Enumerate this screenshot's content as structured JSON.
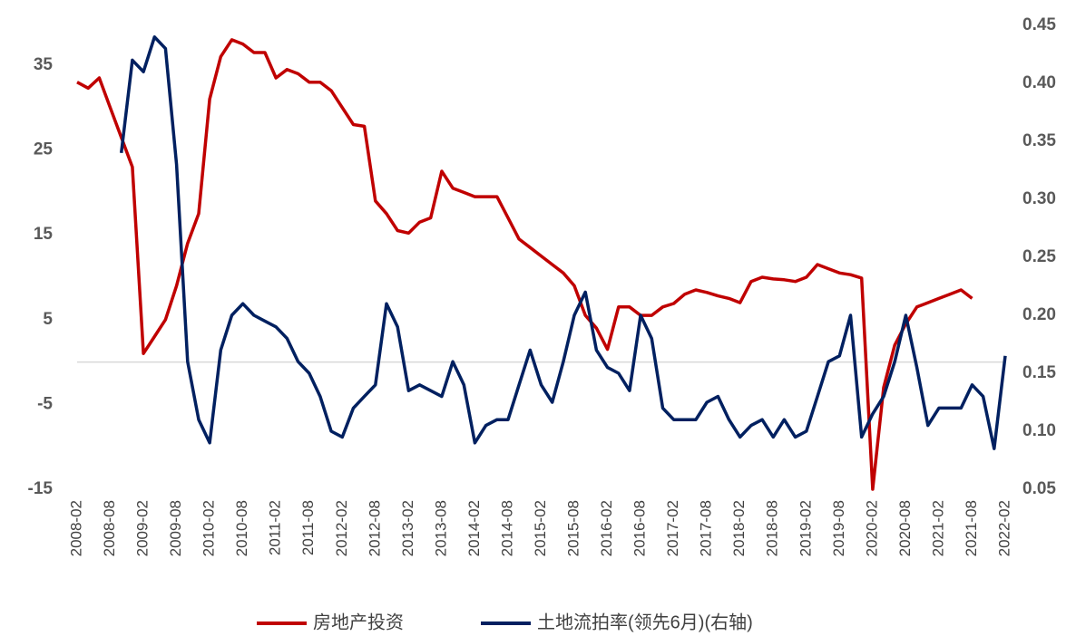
{
  "chart_data": {
    "type": "line",
    "x": [
      "2008-02",
      "2008-04",
      "2008-06",
      "2008-08",
      "2008-10",
      "2008-12",
      "2009-02",
      "2009-04",
      "2009-06",
      "2009-08",
      "2009-10",
      "2009-12",
      "2010-02",
      "2010-04",
      "2010-06",
      "2010-08",
      "2010-10",
      "2010-12",
      "2011-02",
      "2011-04",
      "2011-06",
      "2011-08",
      "2011-10",
      "2011-12",
      "2012-02",
      "2012-04",
      "2012-06",
      "2012-08",
      "2012-10",
      "2012-12",
      "2013-02",
      "2013-04",
      "2013-06",
      "2013-08",
      "2013-10",
      "2013-12",
      "2014-02",
      "2014-04",
      "2014-06",
      "2014-08",
      "2014-10",
      "2014-12",
      "2015-02",
      "2015-04",
      "2015-06",
      "2015-08",
      "2015-10",
      "2015-12",
      "2016-02",
      "2016-04",
      "2016-06",
      "2016-08",
      "2016-10",
      "2016-12",
      "2017-02",
      "2017-04",
      "2017-06",
      "2017-08",
      "2017-10",
      "2017-12",
      "2018-02",
      "2018-04",
      "2018-06",
      "2018-08",
      "2018-10",
      "2018-12",
      "2019-02",
      "2019-04",
      "2019-06",
      "2019-08",
      "2019-10",
      "2019-12",
      "2020-02",
      "2020-04",
      "2020-06",
      "2020-08",
      "2020-10",
      "2020-12",
      "2021-02",
      "2021-04",
      "2021-06",
      "2021-08",
      "2021-10",
      "2021-12",
      "2022-02"
    ],
    "series": [
      {
        "name": "房地产投资",
        "color": "#c00000",
        "values": [
          33,
          32.3,
          33.5,
          30,
          26.5,
          23,
          1,
          3,
          5,
          9,
          14,
          17.5,
          31,
          36,
          38,
          37.5,
          36.5,
          36.5,
          33.5,
          34.5,
          34,
          33,
          33,
          32,
          30,
          28,
          27.8,
          19,
          17.5,
          15.5,
          15.2,
          16.5,
          17,
          22.5,
          20.5,
          20,
          19.5,
          19.5,
          19.5,
          17,
          14.5,
          13.5,
          12.5,
          11.5,
          10.5,
          9,
          5.5,
          4,
          1.5,
          6.5,
          6.5,
          5.5,
          5.5,
          6.5,
          6.9,
          8,
          8.5,
          8.2,
          7.8,
          7.5,
          7,
          9.5,
          10,
          9.8,
          9.7,
          9.5,
          10,
          11.5,
          11,
          10.5,
          10.3,
          9.9,
          -15,
          -3,
          2,
          4.5,
          6.5,
          7,
          7.5,
          8,
          8.5,
          7.5,
          null,
          null,
          null
        ]
      },
      {
        "name": "土地流拍率(领先6月)(右轴)",
        "color": "#002060",
        "axis": "y2",
        "values": [
          null,
          null,
          null,
          null,
          0.34,
          0.42,
          0.41,
          0.44,
          0.43,
          0.33,
          0.16,
          0.11,
          0.09,
          0.17,
          0.2,
          0.21,
          0.2,
          0.195,
          0.19,
          0.18,
          0.16,
          0.15,
          0.13,
          0.1,
          0.095,
          0.12,
          0.13,
          0.14,
          0.21,
          0.19,
          0.135,
          0.14,
          0.135,
          0.13,
          0.16,
          0.14,
          0.09,
          0.105,
          0.11,
          0.11,
          0.14,
          0.17,
          0.14,
          0.125,
          0.16,
          0.2,
          0.22,
          0.17,
          0.155,
          0.15,
          0.135,
          0.2,
          0.18,
          0.12,
          0.11,
          0.11,
          0.11,
          0.125,
          0.13,
          0.11,
          0.095,
          0.105,
          0.11,
          0.095,
          0.11,
          0.095,
          0.1,
          0.13,
          0.16,
          0.165,
          0.2,
          0.095,
          0.115,
          0.13,
          0.16,
          0.2,
          0.155,
          0.105,
          0.12,
          0.12,
          0.12,
          0.14,
          0.13,
          0.085,
          0.165
        ]
      }
    ],
    "ylim": [
      -15,
      39.7
    ],
    "yticks": [
      -15,
      -5,
      5,
      15,
      25,
      35
    ],
    "y2lim": [
      0.05,
      0.45
    ],
    "y2ticks": [
      0.05,
      {
        "value": 0.1,
        "label": "0.10"
      },
      0.15,
      {
        "value": 0.2,
        "label": "0.20"
      },
      0.25,
      {
        "value": 0.3,
        "label": "0.30"
      },
      0.35,
      {
        "value": 0.4,
        "label": "0.40"
      },
      0.45
    ],
    "legend": "bottom"
  }
}
